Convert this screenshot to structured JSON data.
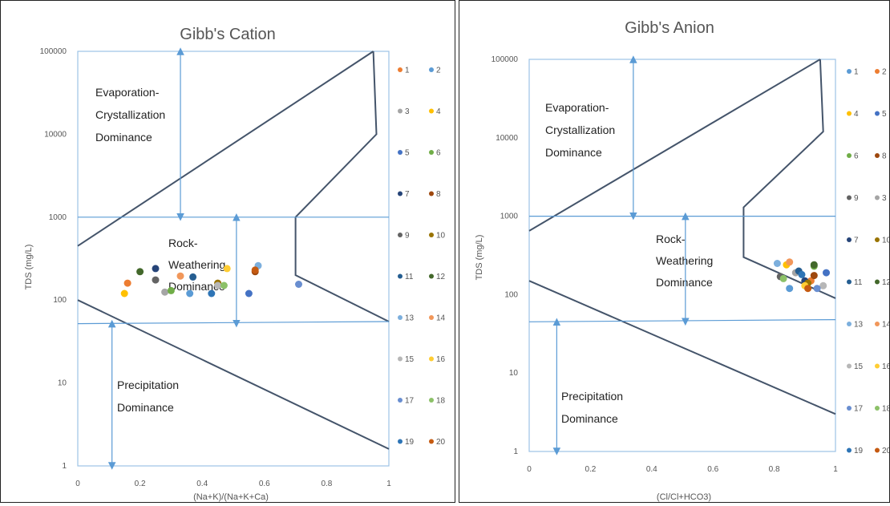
{
  "charts": [
    {
      "title": "Gibb's Cation",
      "ylabel": "TDS (mg/L)",
      "xlabel": "(Na+K)/(Na+K+Ca)",
      "regions": [
        {
          "lines": [
            "Evaporation-",
            "Crystallization",
            "Dominance"
          ]
        },
        {
          "lines": [
            "Rock-",
            "Weathering",
            "Dominance"
          ]
        },
        {
          "lines": [
            "Precipitation",
            "Dominance"
          ]
        }
      ],
      "legend_labels": [
        "1",
        "2",
        "3",
        "4",
        "5",
        "6",
        "7",
        "8",
        "9",
        "10",
        "11",
        "12",
        "13",
        "14",
        "15",
        "16",
        "17",
        "18",
        "19",
        "20"
      ]
    },
    {
      "title": "Gibb's Anion",
      "ylabel": "TDS (mg/L)",
      "xlabel": "(Cl/Cl+HCO3)",
      "regions": [
        {
          "lines": [
            "Evaporation-",
            "Crystallization",
            "Dominance"
          ]
        },
        {
          "lines": [
            "Rock-",
            "Weathering",
            "Dominance"
          ]
        },
        {
          "lines": [
            "Precipitation",
            "Dominance"
          ]
        }
      ],
      "legend_labels": [
        "1",
        "2",
        "4",
        "5",
        "6",
        "8",
        "9",
        "3",
        "7",
        "10",
        "11",
        "12",
        "13",
        "14",
        "15",
        "16",
        "17",
        "18",
        "19",
        "20"
      ]
    }
  ],
  "chart_data": [
    {
      "type": "scatter",
      "title": "Gibb's Cation",
      "xlabel": "(Na+K)/(Na+K+Ca)",
      "ylabel": "TDS (mg/L)",
      "xlim": [
        0,
        1
      ],
      "ylim": [
        1,
        100000
      ],
      "yscale": "log",
      "x_ticks": [
        "0",
        "0.2",
        "0.4",
        "0.6",
        "0.8",
        "1"
      ],
      "y_ticks": [
        "1",
        "10",
        "100",
        "1000",
        "10000",
        "100000"
      ],
      "grid": false,
      "legend_position": "right",
      "boundary_lines": [
        {
          "x": [
            0,
            0.95
          ],
          "y": [
            450,
            100000
          ]
        },
        {
          "x": [
            0,
            1
          ],
          "y": [
            100,
            1.6
          ]
        },
        {
          "x": [
            0.95,
            0.96,
            0.7,
            0.7,
            1.0
          ],
          "y": [
            100000,
            10000,
            1000,
            200,
            55
          ]
        },
        {
          "x": [
            0,
            1
          ],
          "y": [
            1000,
            1000
          ]
        },
        {
          "x": [
            0,
            1
          ],
          "y": [
            52,
            55
          ]
        }
      ],
      "arrows": [
        {
          "x": 0.33,
          "y": [
            100000,
            1000
          ]
        },
        {
          "x": 0.51,
          "y": [
            1000,
            52
          ]
        },
        {
          "x": 0.11,
          "y": [
            52,
            1
          ]
        }
      ],
      "series": [
        {
          "name": "1",
          "color": "#ED7D31",
          "points": [
            [
              0.16,
              160
            ]
          ]
        },
        {
          "name": "2",
          "color": "#5B9BD5",
          "points": [
            [
              0.36,
              120
            ]
          ]
        },
        {
          "name": "3",
          "color": "#A5A5A5",
          "points": [
            [
              0.28,
              125
            ]
          ]
        },
        {
          "name": "4",
          "color": "#FFC000",
          "points": [
            [
              0.15,
              120
            ]
          ]
        },
        {
          "name": "5",
          "color": "#4472C4",
          "points": [
            [
              0.55,
              120
            ]
          ]
        },
        {
          "name": "6",
          "color": "#70AD47",
          "points": [
            [
              0.3,
              130
            ]
          ]
        },
        {
          "name": "7",
          "color": "#264478",
          "points": [
            [
              0.25,
              240
            ]
          ]
        },
        {
          "name": "8",
          "color": "#9E480E",
          "points": [
            [
              0.57,
              220
            ]
          ]
        },
        {
          "name": "9",
          "color": "#636363",
          "points": [
            [
              0.25,
              175
            ]
          ]
        },
        {
          "name": "10",
          "color": "#997300",
          "points": [
            [
              0.45,
              160
            ]
          ]
        },
        {
          "name": "11",
          "color": "#255E91",
          "points": [
            [
              0.37,
              190
            ]
          ]
        },
        {
          "name": "12",
          "color": "#43682B",
          "points": [
            [
              0.2,
              220
            ]
          ]
        },
        {
          "name": "13",
          "color": "#7CAFDD",
          "points": [
            [
              0.58,
              260
            ]
          ]
        },
        {
          "name": "14",
          "color": "#F1975A",
          "points": [
            [
              0.33,
              195
            ]
          ]
        },
        {
          "name": "15",
          "color": "#B7B7B7",
          "points": [
            [
              0.45,
              150
            ]
          ]
        },
        {
          "name": "16",
          "color": "#FFCD33",
          "points": [
            [
              0.48,
              240
            ]
          ]
        },
        {
          "name": "17",
          "color": "#698ED0",
          "points": [
            [
              0.71,
              155
            ]
          ]
        },
        {
          "name": "18",
          "color": "#8CC168",
          "points": [
            [
              0.47,
              150
            ]
          ]
        },
        {
          "name": "19",
          "color": "#2E75B6",
          "points": [
            [
              0.43,
              120
            ]
          ]
        },
        {
          "name": "20",
          "color": "#C55A11",
          "points": [
            [
              0.57,
              230
            ]
          ]
        }
      ]
    },
    {
      "type": "scatter",
      "title": "Gibb's Anion",
      "xlabel": "(Cl/Cl+HCO3)",
      "ylabel": "TDS (mg/L)",
      "xlim": [
        0,
        1
      ],
      "ylim": [
        1,
        100000
      ],
      "yscale": "log",
      "x_ticks": [
        "0",
        "0.2",
        "0.4",
        "0.6",
        "0.8",
        "1"
      ],
      "y_ticks": [
        "1",
        "10",
        "100",
        "1000",
        "10000",
        "100000"
      ],
      "grid": false,
      "legend_position": "right",
      "boundary_lines": [
        {
          "x": [
            0,
            0.95
          ],
          "y": [
            650,
            100000
          ]
        },
        {
          "x": [
            0,
            1
          ],
          "y": [
            150,
            3
          ]
        },
        {
          "x": [
            0.95,
            0.96,
            0.7,
            0.7,
            1.0
          ],
          "y": [
            100000,
            12000,
            1300,
            300,
            90
          ]
        },
        {
          "x": [
            0,
            1
          ],
          "y": [
            1000,
            1000
          ]
        },
        {
          "x": [
            0,
            1
          ],
          "y": [
            45,
            48
          ]
        }
      ],
      "arrows": [
        {
          "x": 0.34,
          "y": [
            100000,
            1000
          ]
        },
        {
          "x": 0.51,
          "y": [
            1000,
            45
          ]
        },
        {
          "x": 0.09,
          "y": [
            45,
            1
          ]
        }
      ],
      "series": [
        {
          "name": "1",
          "color": "#5B9BD5",
          "points": [
            [
              0.85,
              120
            ]
          ]
        },
        {
          "name": "2",
          "color": "#ED7D31",
          "points": [
            [
              0.92,
              150
            ]
          ]
        },
        {
          "name": "4",
          "color": "#FFC000",
          "points": [
            [
              0.84,
              240
            ]
          ]
        },
        {
          "name": "5",
          "color": "#4472C4",
          "points": [
            [
              0.97,
              190
            ]
          ]
        },
        {
          "name": "6",
          "color": "#70AD47",
          "points": [
            [
              0.93,
              230
            ]
          ]
        },
        {
          "name": "8",
          "color": "#9E480E",
          "points": [
            [
              0.93,
              175
            ]
          ]
        },
        {
          "name": "9",
          "color": "#636363",
          "points": [
            [
              0.82,
              170
            ]
          ]
        },
        {
          "name": "3",
          "color": "#A5A5A5",
          "points": [
            [
              0.87,
              190
            ]
          ]
        },
        {
          "name": "7",
          "color": "#264478",
          "points": [
            [
              0.9,
              150
            ]
          ]
        },
        {
          "name": "10",
          "color": "#997300",
          "points": [
            [
              0.91,
              140
            ]
          ]
        },
        {
          "name": "11",
          "color": "#255E91",
          "points": [
            [
              0.88,
              200
            ]
          ]
        },
        {
          "name": "12",
          "color": "#43682B",
          "points": [
            [
              0.93,
              240
            ]
          ]
        },
        {
          "name": "13",
          "color": "#7CAFDD",
          "points": [
            [
              0.81,
              250
            ]
          ]
        },
        {
          "name": "14",
          "color": "#F1975A",
          "points": [
            [
              0.85,
              260
            ]
          ]
        },
        {
          "name": "15",
          "color": "#B7B7B7",
          "points": [
            [
              0.96,
              130
            ]
          ]
        },
        {
          "name": "16",
          "color": "#FFCD33",
          "points": [
            [
              0.9,
              130
            ]
          ]
        },
        {
          "name": "17",
          "color": "#698ED0",
          "points": [
            [
              0.94,
              120
            ]
          ]
        },
        {
          "name": "18",
          "color": "#8CC168",
          "points": [
            [
              0.83,
              160
            ]
          ]
        },
        {
          "name": "19",
          "color": "#2E75B6",
          "points": [
            [
              0.89,
              180
            ]
          ]
        },
        {
          "name": "20",
          "color": "#C55A11",
          "points": [
            [
              0.91,
              120
            ]
          ]
        }
      ]
    }
  ]
}
